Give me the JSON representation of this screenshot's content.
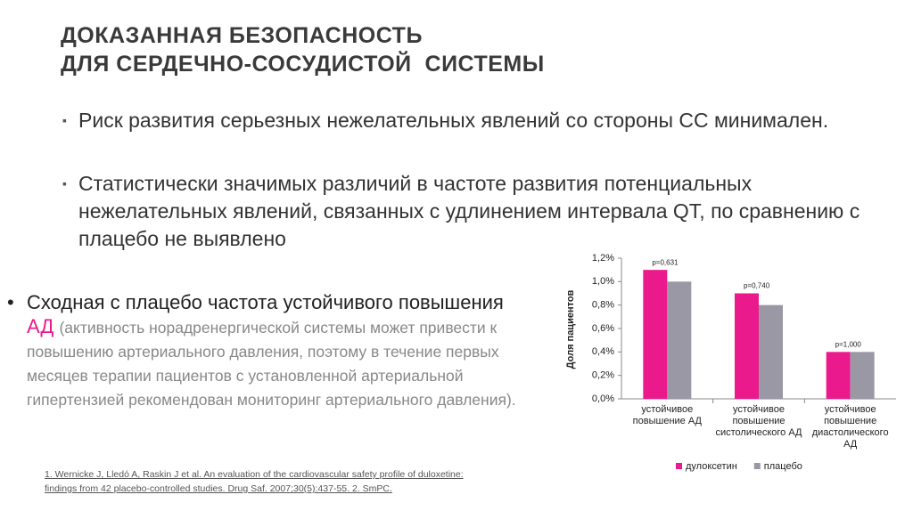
{
  "header": {
    "title_line1": "ДОКАЗАННАЯ БЕЗОПАСНОСТЬ",
    "title_line2": "ДЛЯ СЕРДЕЧНО-СОСУДИСТОЙ  СИСТЕМЫ"
  },
  "bullets": [
    "Риск развития серьезных нежелательных явлений со стороны СС минимален.",
    "Статистически значимых различий в частоте развития потенциальных нежелательных явлений, связанных с удлинением интервала QT, по сравнению с плацебо не выявлено"
  ],
  "side_bullet": {
    "lead": "Сходная с плацебо частота устойчивого повышения",
    "highlight": "АД",
    "note": "(активность норадренергической системы может привести к повышению артериального давления, поэтому в течение первых месяцев терапии пациентов с установленной артериальной гипертензией рекомендован мониторинг артериального давления)."
  },
  "footnote": "1. Wernicke J, Lledó A, Raskin J et al. An evaluation of the cardiovascular safety profile of duloxetine: findings from 42 placebo-controlled studies. Drug Saf. 2007;30(5):437-55. 2. SmPC.",
  "chart_data": {
    "type": "bar",
    "y_label": "Доля пациентов",
    "categories": [
      "устойчивое повышение АД",
      "устойчивое повышение систолического АД",
      "устойчивое повышение диастолического АД"
    ],
    "annotations": [
      "p=0,631",
      "p=0,740",
      "p=1,000"
    ],
    "series": [
      {
        "name": "дулоксетин",
        "color": "#ea1a8c",
        "values": [
          1.1,
          0.9,
          0.4
        ]
      },
      {
        "name": "плацебо",
        "color": "#9a98a4",
        "values": [
          1.0,
          0.8,
          0.4
        ]
      }
    ],
    "ylim": [
      0,
      1.2
    ],
    "yticks": [
      {
        "value": 0,
        "label": "0,0%"
      },
      {
        "value": 0.2,
        "label": "0,2%"
      },
      {
        "value": 0.4,
        "label": "0,4%"
      },
      {
        "value": 0.6,
        "label": "0,6%"
      },
      {
        "value": 0.8,
        "label": "0,8%"
      },
      {
        "value": 1.0,
        "label": "1,0%"
      },
      {
        "value": 1.2,
        "label": "1,2%"
      }
    ],
    "legend": "bottom"
  }
}
